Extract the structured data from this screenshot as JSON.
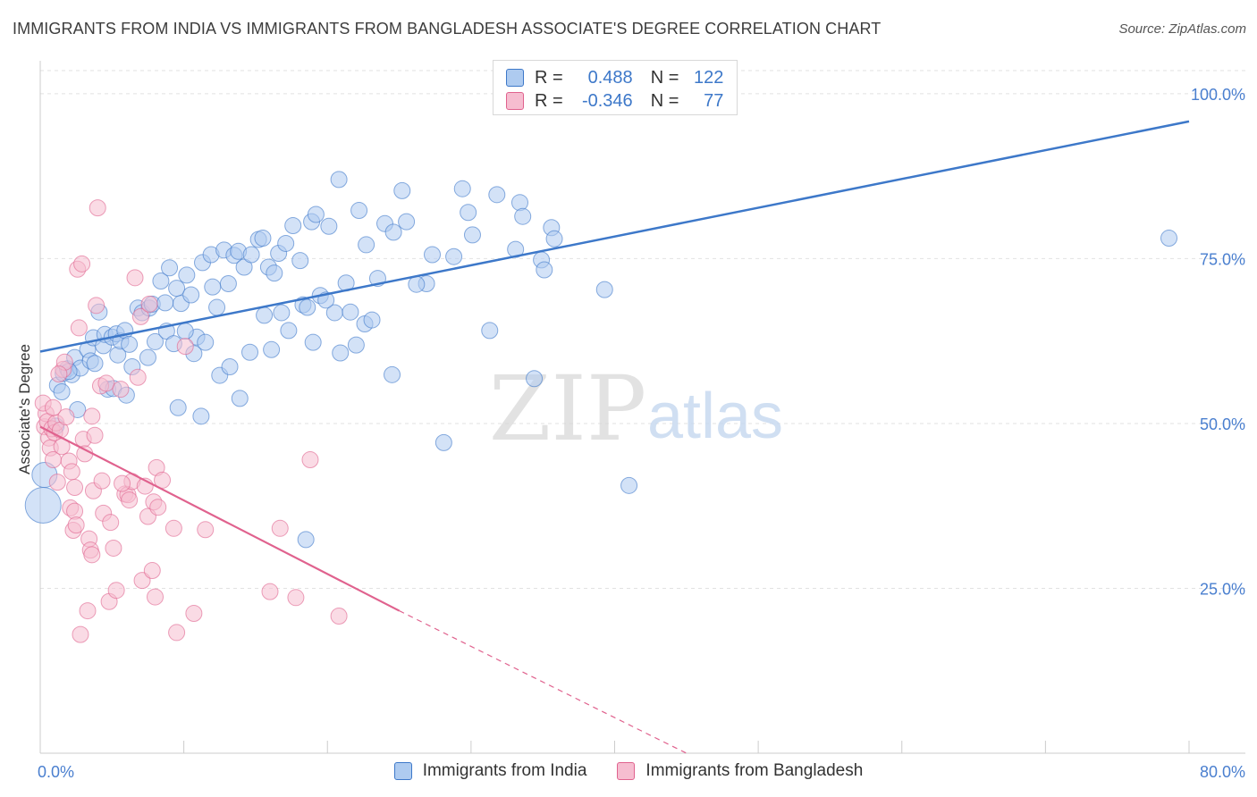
{
  "chart_data": {
    "type": "scatter",
    "title": "IMMIGRANTS FROM INDIA VS IMMIGRANTS FROM BANGLADESH ASSOCIATE'S DEGREE CORRELATION CHART",
    "source": "Source: ZipAtlas.com",
    "xlabel": "",
    "ylabel": "Associate's Degree",
    "xlim": [
      0,
      80
    ],
    "ylim": [
      0,
      105
    ],
    "x_tick_labels": [
      "0.0%",
      "80.0%"
    ],
    "y_tick_labels": [
      "25.0%",
      "50.0%",
      "75.0%",
      "100.0%"
    ],
    "y_ticks": [
      25,
      50,
      75,
      100
    ],
    "grid": true,
    "watermark": "ZIPatlas",
    "colors": {
      "india": "#3d78c9",
      "india_fill": "#aecbf0",
      "bangladesh": "#e0628e",
      "bangladesh_fill": "#f6bdd0",
      "tick_label": "#4a7fcf"
    },
    "legend": {
      "position": "top-center",
      "rows": [
        {
          "r_label": "R =",
          "r_value": "0.488",
          "n_label": "N =",
          "n_value": "122"
        },
        {
          "r_label": "R =",
          "r_value": "-0.346",
          "n_label": "N =",
          "n_value": "77"
        }
      ]
    },
    "series": [
      {
        "name": "Immigrants from India",
        "trend": {
          "x": [
            0,
            80
          ],
          "y": [
            60.9,
            95.8
          ],
          "style": "solid"
        },
        "points": [
          [
            1.2,
            55.8
          ],
          [
            1.5,
            54.8
          ],
          [
            1.6,
            57.6
          ],
          [
            1.9,
            58.3
          ],
          [
            2.2,
            57.4
          ],
          [
            2.4,
            60
          ],
          [
            2.8,
            58.4
          ],
          [
            3.3,
            61.2
          ],
          [
            3.5,
            59.5
          ],
          [
            3.7,
            63
          ],
          [
            4.1,
            66.9
          ],
          [
            4.4,
            61.8
          ],
          [
            4.5,
            63.5
          ],
          [
            5.0,
            63.1
          ],
          [
            5.3,
            63.6
          ],
          [
            5.4,
            60.4
          ],
          [
            5.6,
            62.5
          ],
          [
            5.9,
            64.1
          ],
          [
            6.2,
            62.0
          ],
          [
            6.4,
            58.6
          ],
          [
            6.8,
            67.5
          ],
          [
            7.1,
            66.8
          ],
          [
            7.6,
            67.5
          ],
          [
            7.8,
            68.1
          ],
          [
            8.0,
            62.4
          ],
          [
            8.4,
            71.6
          ],
          [
            8.8,
            64.0
          ],
          [
            9.0,
            73.6
          ],
          [
            9.3,
            62.1
          ],
          [
            9.5,
            70.5
          ],
          [
            9.8,
            68.2
          ],
          [
            10.2,
            72.5
          ],
          [
            10.5,
            69.5
          ],
          [
            10.9,
            63.1
          ],
          [
            11.3,
            74.4
          ],
          [
            11.5,
            62.3
          ],
          [
            11.9,
            75.6
          ],
          [
            12.3,
            67.6
          ],
          [
            12.8,
            76.3
          ],
          [
            13.1,
            71.2
          ],
          [
            13.5,
            75.5
          ],
          [
            13.8,
            76.1
          ],
          [
            14.2,
            73.7
          ],
          [
            14.7,
            75.6
          ],
          [
            15.2,
            77.9
          ],
          [
            15.5,
            78.1
          ],
          [
            15.9,
            73.7
          ],
          [
            16.3,
            72.8
          ],
          [
            16.6,
            75.8
          ],
          [
            17.1,
            77.3
          ],
          [
            17.6,
            80.0
          ],
          [
            18.1,
            74.7
          ],
          [
            18.3,
            68.0
          ],
          [
            18.9,
            80.6
          ],
          [
            19.2,
            81.7
          ],
          [
            19.5,
            69.4
          ],
          [
            20.1,
            79.9
          ],
          [
            20.5,
            66.8
          ],
          [
            20.8,
            87.0
          ],
          [
            21.3,
            71.3
          ],
          [
            22.2,
            82.3
          ],
          [
            22.7,
            77.1
          ],
          [
            23.5,
            72.0
          ],
          [
            24.0,
            80.3
          ],
          [
            24.6,
            79.0
          ],
          [
            25.2,
            85.3
          ],
          [
            25.5,
            80.6
          ],
          [
            26.9,
            71.2
          ],
          [
            27.3,
            75.6
          ],
          [
            28.8,
            75.3
          ],
          [
            29.4,
            85.6
          ],
          [
            29.8,
            82.0
          ],
          [
            30.1,
            78.6
          ],
          [
            31.8,
            84.7
          ],
          [
            33.1,
            76.4
          ],
          [
            33.4,
            83.5
          ],
          [
            33.6,
            81.4
          ],
          [
            34.9,
            74.8
          ],
          [
            35.1,
            73.3
          ],
          [
            35.6,
            79.7
          ],
          [
            35.8,
            78.0
          ],
          [
            3.8,
            59.1
          ],
          [
            4.7,
            55.2
          ],
          [
            7.5,
            60.0
          ],
          [
            9.6,
            52.4
          ],
          [
            10.7,
            60.6
          ],
          [
            12.5,
            57.3
          ],
          [
            13.9,
            53.8
          ],
          [
            15.6,
            66.4
          ],
          [
            16.1,
            61.2
          ],
          [
            17.3,
            64.1
          ],
          [
            18.6,
            67.6
          ],
          [
            19.9,
            68.7
          ],
          [
            21.6,
            66.9
          ],
          [
            22.6,
            65.1
          ],
          [
            23.1,
            65.7
          ],
          [
            26.2,
            71.1
          ],
          [
            28.1,
            47.1
          ],
          [
            31.3,
            64.1
          ],
          [
            34.4,
            56.8
          ],
          [
            39.3,
            70.3
          ],
          [
            41.0,
            40.6
          ],
          [
            78.6,
            78.1
          ],
          [
            18.5,
            32.4
          ],
          [
            11.2,
            51.1
          ],
          [
            14.6,
            60.8
          ],
          [
            0.2,
            37.6
          ],
          [
            0.3,
            42.2
          ],
          [
            1.1,
            49.6
          ],
          [
            2.0,
            57.9
          ],
          [
            2.6,
            52.1
          ],
          [
            5.1,
            55.3
          ],
          [
            6.0,
            54.3
          ],
          [
            8.7,
            68.3
          ],
          [
            10.1,
            64.0
          ],
          [
            12.0,
            70.7
          ],
          [
            13.2,
            58.6
          ],
          [
            16.8,
            66.8
          ],
          [
            19.0,
            62.3
          ],
          [
            20.9,
            60.7
          ],
          [
            22.0,
            61.9
          ],
          [
            24.5,
            57.4
          ]
        ]
      },
      {
        "name": "Immigrants from Bangladesh",
        "trend": {
          "x": [
            0,
            25
          ],
          "y": [
            49.5,
            21.6
          ],
          "ext_x": [
            25,
            45
          ],
          "ext_y": [
            21.6,
            0
          ],
          "style": "solid+dashed"
        },
        "points": [
          [
            0.3,
            49.5
          ],
          [
            0.4,
            51.5
          ],
          [
            0.5,
            50.3
          ],
          [
            0.6,
            47.8
          ],
          [
            0.7,
            46.3
          ],
          [
            0.8,
            49.2
          ],
          [
            0.9,
            44.5
          ],
          [
            1.0,
            48.6
          ],
          [
            1.1,
            50.1
          ],
          [
            1.2,
            41.1
          ],
          [
            1.4,
            49.0
          ],
          [
            1.5,
            46.5
          ],
          [
            1.6,
            58.2
          ],
          [
            1.7,
            59.3
          ],
          [
            1.8,
            51.0
          ],
          [
            2.0,
            44.3
          ],
          [
            2.1,
            37.2
          ],
          [
            2.2,
            42.7
          ],
          [
            2.3,
            33.8
          ],
          [
            2.4,
            36.7
          ],
          [
            2.5,
            34.6
          ],
          [
            2.6,
            73.4
          ],
          [
            2.7,
            64.5
          ],
          [
            2.8,
            18.0
          ],
          [
            2.9,
            74.2
          ],
          [
            3.0,
            47.6
          ],
          [
            3.1,
            45.4
          ],
          [
            3.3,
            21.6
          ],
          [
            3.4,
            32.5
          ],
          [
            3.5,
            30.8
          ],
          [
            3.6,
            30.1
          ],
          [
            3.7,
            39.8
          ],
          [
            3.8,
            48.2
          ],
          [
            3.9,
            67.9
          ],
          [
            4.0,
            82.7
          ],
          [
            4.2,
            55.7
          ],
          [
            4.3,
            41.3
          ],
          [
            4.4,
            36.4
          ],
          [
            4.6,
            56.1
          ],
          [
            4.8,
            23.0
          ],
          [
            4.9,
            35.0
          ],
          [
            5.1,
            31.1
          ],
          [
            5.3,
            24.7
          ],
          [
            5.6,
            55.2
          ],
          [
            5.9,
            39.3
          ],
          [
            6.1,
            39.2
          ],
          [
            6.2,
            38.4
          ],
          [
            6.4,
            41.2
          ],
          [
            6.6,
            72.1
          ],
          [
            6.8,
            57.0
          ],
          [
            7.0,
            66.2
          ],
          [
            7.1,
            26.2
          ],
          [
            7.3,
            40.5
          ],
          [
            7.5,
            35.9
          ],
          [
            7.6,
            68.1
          ],
          [
            7.8,
            27.7
          ],
          [
            7.9,
            38.1
          ],
          [
            8.0,
            23.7
          ],
          [
            8.1,
            43.3
          ],
          [
            8.2,
            37.3
          ],
          [
            8.5,
            41.4
          ],
          [
            9.3,
            34.1
          ],
          [
            9.5,
            18.3
          ],
          [
            10.1,
            61.7
          ],
          [
            10.7,
            21.2
          ],
          [
            11.5,
            33.9
          ],
          [
            16.0,
            24.5
          ],
          [
            16.7,
            34.1
          ],
          [
            17.8,
            23.6
          ],
          [
            18.8,
            44.5
          ],
          [
            20.8,
            20.8
          ],
          [
            0.2,
            53.1
          ],
          [
            0.9,
            52.4
          ],
          [
            1.3,
            57.5
          ],
          [
            2.4,
            40.3
          ],
          [
            3.6,
            51.1
          ],
          [
            5.7,
            40.9
          ]
        ]
      }
    ]
  },
  "legend_bottom": [
    {
      "label": "Immigrants from India"
    },
    {
      "label": "Immigrants from Bangladesh"
    }
  ]
}
